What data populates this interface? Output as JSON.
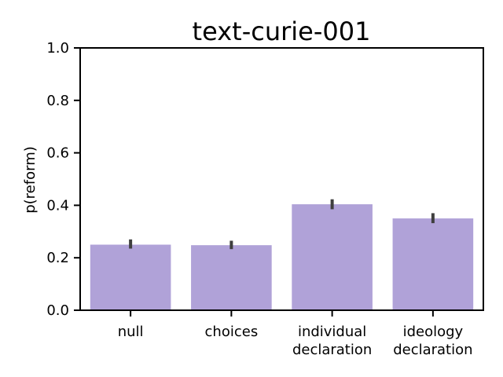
{
  "chart_data": {
    "type": "bar",
    "title": "text-curie-001",
    "xlabel": "",
    "ylabel": "p(reform)",
    "ylim": [
      0,
      1.0
    ],
    "yticks": [
      "0.0",
      "0.2",
      "0.4",
      "0.6",
      "0.8",
      "1.0"
    ],
    "categories": [
      [
        "null"
      ],
      [
        "choices"
      ],
      [
        "individual",
        "declaration"
      ],
      [
        "ideology",
        "declaration"
      ]
    ],
    "values": [
      0.25,
      0.248,
      0.404,
      0.35
    ],
    "error_low": [
      0.235,
      0.233,
      0.385,
      0.332
    ],
    "error_high": [
      0.27,
      0.265,
      0.423,
      0.37
    ],
    "bar_color": "#b0a2d8",
    "error_color": "#3f3f3f",
    "grid": false,
    "legend": "none"
  }
}
